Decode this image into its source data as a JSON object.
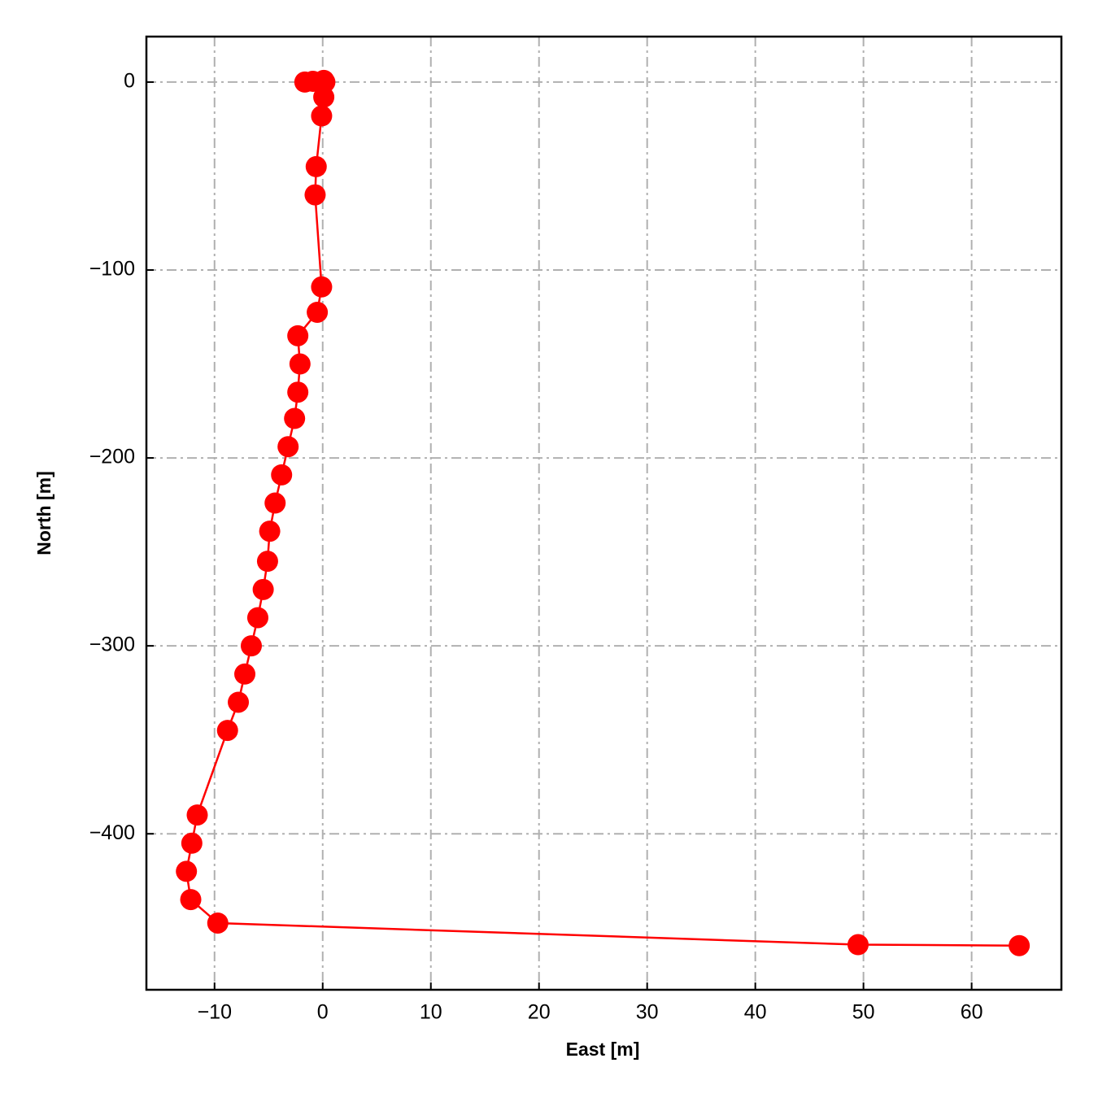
{
  "chart_data": {
    "type": "line",
    "xlabel": "East [m]",
    "ylabel": "North [m]",
    "x": [
      -1.65,
      -0.9,
      0.1,
      0.2,
      0.1,
      -0.1,
      -0.6,
      -0.7,
      -0.1,
      -0.5,
      -2.3,
      -2.1,
      -2.3,
      -2.6,
      -3.2,
      -3.8,
      -4.4,
      -4.9,
      -5.1,
      -5.5,
      -6.0,
      -6.6,
      -7.2,
      -7.8,
      -8.8,
      -11.6,
      -12.1,
      -12.6,
      -12.2,
      -9.7,
      49.5,
      64.4
    ],
    "values": [
      0,
      0.4,
      0.9,
      0,
      -8,
      -18,
      -45,
      -60,
      -109,
      -122.5,
      -135,
      -150,
      -165,
      -179,
      -194,
      -209,
      -224,
      -239,
      -255,
      -270,
      -285,
      -300,
      -315,
      -330,
      -345,
      -390,
      -405,
      -420,
      -435,
      -447.5,
      -459,
      -459.5
    ],
    "color": "#ff0000",
    "xlim": [
      -16.3,
      68.3
    ],
    "ylim": [
      -483,
      24.2
    ],
    "xticks": [
      {
        "value": -10,
        "label": "−10"
      },
      0,
      10,
      20,
      30,
      40,
      50,
      60
    ],
    "yticks": [
      0,
      {
        "value": -100,
        "label": "−100"
      },
      {
        "value": -200,
        "label": "−200"
      },
      {
        "value": -300,
        "label": "−300"
      },
      {
        "value": -400,
        "label": "−400"
      }
    ],
    "grid": true
  }
}
